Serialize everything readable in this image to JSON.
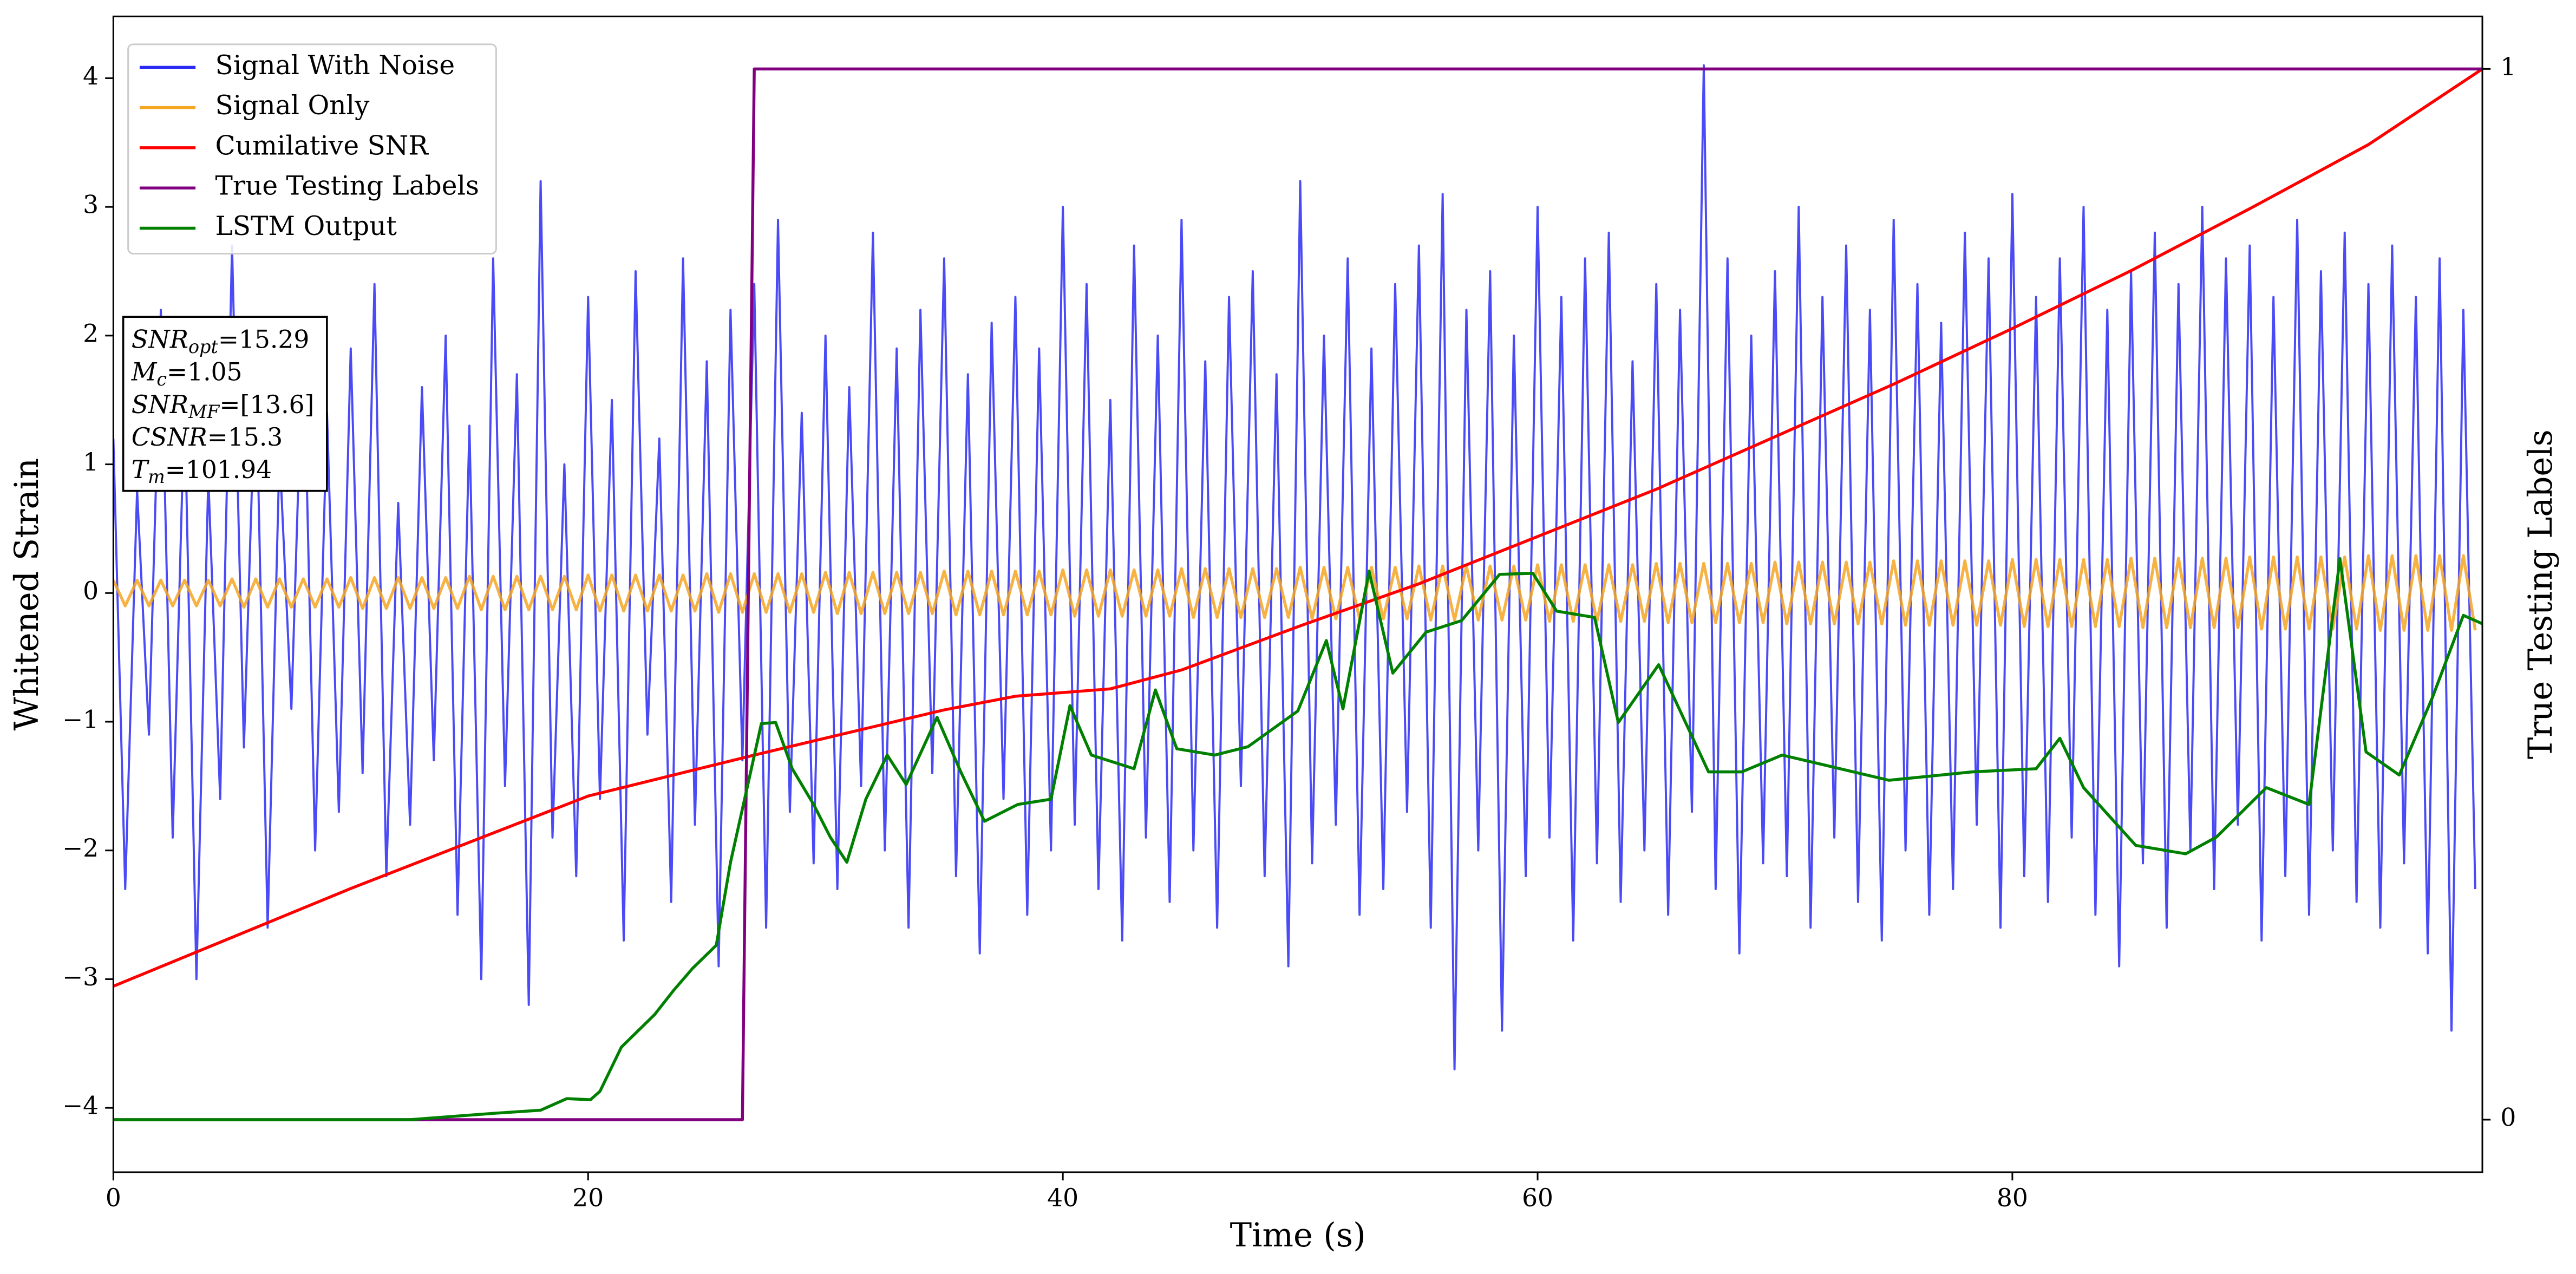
{
  "chart_data": {
    "type": "line",
    "xlabel": "Time (s)",
    "ylabel": "Whitened Strain",
    "y2label": "True Testing Labels",
    "xlim": [
      0,
      99.8
    ],
    "xticks": [
      0,
      20,
      40,
      60,
      80
    ],
    "ylim": [
      -4.5,
      4.48
    ],
    "yticks": [
      {
        "value": -4,
        "label": "−4"
      },
      {
        "value": -3,
        "label": "−3"
      },
      {
        "value": -2,
        "label": "−2"
      },
      {
        "value": -1,
        "label": "−1"
      },
      0,
      1,
      2,
      3,
      4
    ],
    "y2lim": [
      -0.05,
      1.05
    ],
    "y2ticks": [
      0,
      1
    ],
    "legend": "upper left",
    "annotations": [
      {
        "var": "SNR",
        "sub": "opt",
        "text": "=15.29"
      },
      {
        "var": "M",
        "sub": "c",
        "text": "=1.05"
      },
      {
        "var": "SNR",
        "sub": "MF",
        "text": "=[13.6]"
      },
      {
        "var": "CSNR",
        "text": "=15.3"
      },
      {
        "var": "T",
        "sub": "m",
        "text": "=101.94"
      }
    ],
    "x": [
      0,
      0.5,
      1,
      1.5,
      2,
      2.5,
      3,
      3.5,
      4,
      4.5,
      5,
      5.5,
      6,
      6.5,
      7,
      7.5,
      8,
      8.5,
      9,
      9.5,
      10,
      10.5,
      11,
      11.5,
      12,
      12.5,
      13,
      13.5,
      14,
      14.5,
      15,
      15.5,
      16,
      16.5,
      17,
      17.5,
      18,
      18.5,
      19,
      19.5,
      20,
      20.5,
      21,
      21.5,
      22,
      22.5,
      23,
      23.5,
      24,
      24.5,
      25,
      25.5,
      26,
      26.5,
      27,
      27.5,
      28,
      28.5,
      29,
      29.5,
      30,
      30.5,
      31,
      31.5,
      32,
      32.5,
      33,
      33.5,
      34,
      34.5,
      35,
      35.5,
      36,
      36.5,
      37,
      37.5,
      38,
      38.5,
      39,
      39.5,
      40,
      40.5,
      41,
      41.5,
      42,
      42.5,
      43,
      43.5,
      44,
      44.5,
      45,
      45.5,
      46,
      46.5,
      47,
      47.5,
      48,
      48.5,
      49,
      49.5,
      50,
      50.5,
      51,
      51.5,
      52,
      52.5,
      53,
      53.5,
      54,
      54.5,
      55,
      55.5,
      56,
      56.5,
      57,
      57.5,
      58,
      58.5,
      59,
      59.5,
      60,
      60.5,
      61,
      61.5,
      62,
      62.5,
      63,
      63.5,
      64,
      64.5,
      65,
      65.5,
      66,
      66.5,
      67,
      67.5,
      68,
      68.5,
      69,
      69.5,
      70,
      70.5,
      71,
      71.5,
      72,
      72.5,
      73,
      73.5,
      74,
      74.5,
      75,
      75.5,
      76,
      76.5,
      77,
      77.5,
      78,
      78.5,
      79,
      79.5,
      80,
      80.5,
      81,
      81.5,
      82,
      82.5,
      83,
      83.5,
      84,
      84.5,
      85,
      85.5,
      86,
      86.5,
      87,
      87.5,
      88,
      88.5,
      89,
      89.5,
      90,
      90.5,
      91,
      91.5,
      92,
      92.5,
      93,
      93.5,
      94,
      94.5,
      95,
      95.5,
      96,
      96.5,
      97,
      97.5,
      98,
      98.5,
      99,
      99.5
    ],
    "series": [
      {
        "name": "Signal With Noise",
        "color": "#2a2af5",
        "values": [
          1.2,
          -2.3,
          0.8,
          -1.1,
          2.2,
          -1.9,
          1.5,
          -3.0,
          0.9,
          -1.6,
          2.7,
          -1.2,
          1.8,
          -2.6,
          1.1,
          -0.9,
          2.1,
          -2.0,
          1.4,
          -1.7,
          1.9,
          -1.4,
          2.4,
          -2.2,
          0.7,
          -1.8,
          1.6,
          -1.3,
          2.0,
          -2.5,
          1.3,
          -3.0,
          2.6,
          -1.5,
          1.7,
          -3.2,
          3.2,
          -1.9,
          1.0,
          -2.2,
          2.3,
          -1.6,
          1.5,
          -2.7,
          2.5,
          -1.1,
          1.2,
          -2.4,
          2.6,
          -1.8,
          1.8,
          -2.9,
          2.2,
          -1.3,
          2.4,
          -2.6,
          2.9,
          -1.7,
          1.4,
          -2.1,
          2.0,
          -2.3,
          1.6,
          -1.5,
          2.8,
          -2.0,
          1.9,
          -2.6,
          2.2,
          -1.4,
          2.6,
          -2.2,
          1.7,
          -2.8,
          2.1,
          -1.6,
          2.3,
          -2.5,
          1.9,
          -2.0,
          3.0,
          -1.8,
          2.4,
          -2.3,
          1.5,
          -2.7,
          2.7,
          -1.9,
          2.0,
          -2.4,
          2.9,
          -2.0,
          1.8,
          -2.6,
          2.3,
          -1.5,
          2.5,
          -2.2,
          1.7,
          -2.9,
          3.2,
          -2.1,
          2.0,
          -1.8,
          2.6,
          -2.5,
          1.9,
          -2.3,
          2.4,
          -1.7,
          2.7,
          -2.6,
          3.1,
          -3.7,
          2.2,
          -2.0,
          2.5,
          -3.4,
          2.0,
          -2.2,
          3.0,
          -1.9,
          2.3,
          -2.7,
          2.6,
          -2.1,
          2.8,
          -2.4,
          1.8,
          -2.0,
          2.4,
          -2.5,
          2.2,
          -1.7,
          4.1,
          -2.3,
          2.6,
          -2.8,
          2.0,
          -2.1,
          2.5,
          -2.2,
          3.0,
          -2.6,
          2.3,
          -1.9,
          2.7,
          -2.4,
          2.2,
          -2.7,
          2.9,
          -2.0,
          2.4,
          -2.5,
          2.1,
          -2.3,
          2.8,
          -1.8,
          2.6,
          -2.6,
          3.1,
          -2.2,
          2.3,
          -2.4,
          2.6,
          -1.9,
          3.0,
          -2.5,
          2.2,
          -2.9,
          2.5,
          -2.1,
          2.8,
          -2.6,
          2.4,
          -2.0,
          3.0,
          -2.3,
          2.6,
          -1.8,
          2.7,
          -2.7,
          2.3,
          -2.2,
          2.9,
          -2.5,
          2.5,
          -2.0,
          2.8,
          -2.4,
          2.4,
          -2.6,
          2.7,
          -2.1,
          2.3,
          -2.8,
          2.6,
          -3.4,
          2.2,
          -2.3
        ]
      },
      {
        "name": "Signal Only",
        "color": "#f5a623",
        "values": [
          0.1,
          -0.1,
          0.1,
          -0.1,
          0.1,
          -0.1,
          0.1,
          -0.1,
          0.1,
          -0.1,
          0.11,
          -0.11,
          0.11,
          -0.11,
          0.11,
          -0.11,
          0.11,
          -0.11,
          0.11,
          -0.11,
          0.12,
          -0.12,
          0.12,
          -0.12,
          0.12,
          -0.12,
          0.12,
          -0.12,
          0.12,
          -0.12,
          0.13,
          -0.13,
          0.13,
          -0.13,
          0.13,
          -0.13,
          0.13,
          -0.13,
          0.13,
          -0.13,
          0.14,
          -0.14,
          0.14,
          -0.14,
          0.14,
          -0.14,
          0.14,
          -0.14,
          0.14,
          -0.14,
          0.15,
          -0.15,
          0.15,
          -0.15,
          0.15,
          -0.15,
          0.15,
          -0.15,
          0.15,
          -0.15,
          0.16,
          -0.16,
          0.16,
          -0.16,
          0.16,
          -0.16,
          0.16,
          -0.16,
          0.16,
          -0.16,
          0.17,
          -0.17,
          0.17,
          -0.17,
          0.17,
          -0.17,
          0.17,
          -0.17,
          0.17,
          -0.17,
          0.18,
          -0.18,
          0.18,
          -0.18,
          0.18,
          -0.18,
          0.18,
          -0.18,
          0.18,
          -0.18,
          0.19,
          -0.19,
          0.19,
          -0.19,
          0.19,
          -0.19,
          0.19,
          -0.19,
          0.19,
          -0.19,
          0.2,
          -0.2,
          0.2,
          -0.2,
          0.2,
          -0.2,
          0.2,
          -0.2,
          0.2,
          -0.2,
          0.21,
          -0.21,
          0.21,
          -0.21,
          0.21,
          -0.21,
          0.21,
          -0.21,
          0.21,
          -0.21,
          0.22,
          -0.22,
          0.22,
          -0.22,
          0.22,
          -0.22,
          0.22,
          -0.22,
          0.22,
          -0.22,
          0.23,
          -0.23,
          0.23,
          -0.23,
          0.23,
          -0.23,
          0.23,
          -0.23,
          0.23,
          -0.23,
          0.24,
          -0.24,
          0.24,
          -0.24,
          0.24,
          -0.24,
          0.24,
          -0.24,
          0.24,
          -0.24,
          0.25,
          -0.25,
          0.25,
          -0.25,
          0.25,
          -0.25,
          0.25,
          -0.25,
          0.25,
          -0.25,
          0.26,
          -0.26,
          0.26,
          -0.26,
          0.26,
          -0.26,
          0.26,
          -0.26,
          0.26,
          -0.26,
          0.27,
          -0.27,
          0.27,
          -0.27,
          0.27,
          -0.27,
          0.27,
          -0.27,
          0.27,
          -0.27,
          0.28,
          -0.28,
          0.28,
          -0.28,
          0.28,
          -0.28,
          0.28,
          -0.28,
          0.28,
          -0.28,
          0.29,
          -0.29,
          0.29,
          -0.29,
          0.29,
          -0.29,
          0.29,
          -0.29,
          0.29,
          -0.29
        ]
      },
      {
        "name": "Cumilative SNR",
        "color": "#ff0000",
        "axis": "y2",
        "x": [
          0,
          10,
          20,
          27,
          35,
          38,
          42,
          45,
          50,
          55,
          60,
          65,
          70,
          75,
          80,
          85,
          90,
          95,
          99.8
        ],
        "values": [
          0.127,
          0.22,
          0.308,
          0.347,
          0.39,
          0.403,
          0.41,
          0.428,
          0.47,
          0.51,
          0.555,
          0.6,
          0.65,
          0.7,
          0.753,
          0.808,
          0.867,
          0.928,
          1.0
        ]
      },
      {
        "name": "True Testing Labels",
        "color": "#800080",
        "axis": "y2",
        "x": [
          0,
          26.5,
          27.0,
          99.8
        ],
        "values": [
          0,
          0,
          1,
          1
        ]
      },
      {
        "name": "LSTM Output",
        "color": "#008000",
        "axis": "y2",
        "x": [
          0,
          12.5,
          16,
          18,
          19.1,
          20.1,
          20.5,
          21.4,
          22.8,
          23.6,
          24.4,
          25.4,
          26,
          26.7,
          27.3,
          27.9,
          28.6,
          29.5,
          30.2,
          30.9,
          31.7,
          32.6,
          33.4,
          34.7,
          35.7,
          36.7,
          38.1,
          39.5,
          40.3,
          41.2,
          43,
          43.9,
          44.8,
          46.4,
          47.8,
          49.9,
          51.1,
          51.8,
          52.9,
          53.9,
          55.3,
          56.8,
          58.4,
          59.8,
          60.8,
          62.4,
          63.4,
          65.1,
          67.2,
          68.6,
          70.3,
          72,
          74.8,
          78.3,
          81,
          82,
          83,
          85.2,
          87.3,
          88.6,
          90.7,
          92.5,
          93.8,
          94.9,
          96.3,
          97.7,
          99,
          99.8
        ],
        "values": [
          0,
          0,
          0.006,
          0.009,
          0.02,
          0.019,
          0.027,
          0.069,
          0.1,
          0.123,
          0.144,
          0.166,
          0.245,
          0.316,
          0.377,
          0.378,
          0.334,
          0.3,
          0.269,
          0.245,
          0.305,
          0.347,
          0.319,
          0.383,
          0.331,
          0.284,
          0.3,
          0.305,
          0.394,
          0.347,
          0.334,
          0.409,
          0.353,
          0.347,
          0.355,
          0.389,
          0.456,
          0.391,
          0.522,
          0.425,
          0.464,
          0.475,
          0.519,
          0.52,
          0.484,
          0.478,
          0.378,
          0.433,
          0.331,
          0.331,
          0.347,
          0.338,
          0.323,
          0.331,
          0.334,
          0.363,
          0.316,
          0.261,
          0.253,
          0.269,
          0.316,
          0.3,
          0.534,
          0.35,
          0.328,
          0.402,
          0.48,
          0.472
        ]
      }
    ]
  }
}
